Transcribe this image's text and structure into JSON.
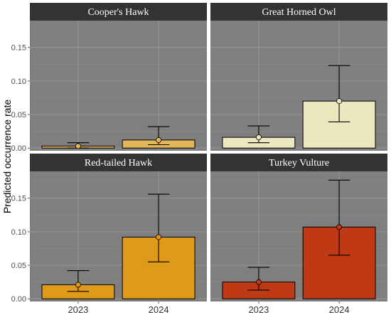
{
  "chart_data": {
    "type": "bar",
    "ylabel": "Predicted occurrence rate",
    "xlabel": "",
    "categories": [
      "2023",
      "2024"
    ],
    "ylim": [
      -0.004,
      0.19
    ],
    "yticks": [
      0.0,
      0.05,
      0.1,
      0.15
    ],
    "ytick_labels": [
      "0.00",
      "0.05",
      "0.10",
      "0.15"
    ],
    "grid": true,
    "panel_background": "#7f7f7f",
    "strip_background": "#333333",
    "panels": [
      {
        "title": "Cooper's Hawk",
        "color": "#e3b65a",
        "values": [
          0.003,
          0.012
        ],
        "lower": [
          0.0,
          0.005
        ],
        "upper": [
          0.008,
          0.032
        ]
      },
      {
        "title": "Great Horned Owl",
        "color": "#ebe7bf",
        "values": [
          0.016,
          0.07
        ],
        "lower": [
          0.008,
          0.039
        ],
        "upper": [
          0.033,
          0.123
        ]
      },
      {
        "title": "Red-tailed Hawk",
        "color": "#e09a1a",
        "values": [
          0.021,
          0.092
        ],
        "lower": [
          0.011,
          0.055
        ],
        "upper": [
          0.042,
          0.156
        ]
      },
      {
        "title": "Turkey Vulture",
        "color": "#bf3a14",
        "values": [
          0.025,
          0.107
        ],
        "lower": [
          0.013,
          0.065
        ],
        "upper": [
          0.047,
          0.177
        ]
      }
    ]
  }
}
